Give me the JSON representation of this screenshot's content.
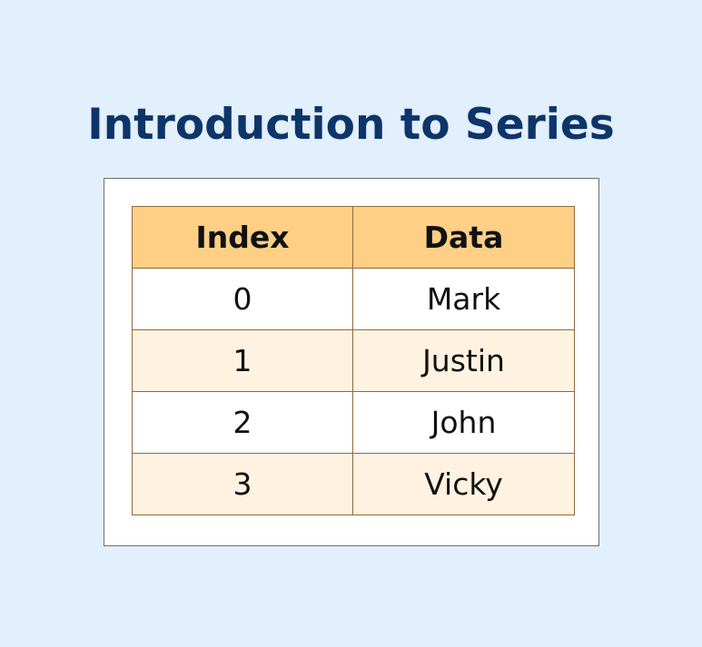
{
  "title": "Introduction to Series",
  "table": {
    "headers": [
      "Index",
      "Data"
    ],
    "rows": [
      {
        "index": "0",
        "data": "Mark"
      },
      {
        "index": "1",
        "data": "Justin"
      },
      {
        "index": "2",
        "data": "John"
      },
      {
        "index": "3",
        "data": "Vicky"
      }
    ]
  },
  "colors": {
    "background": "#e2effd",
    "title": "#0d3569",
    "header_fill": "#ffcf85",
    "row_alt_fill": "#fff2e0",
    "border": "#8d6a3e"
  }
}
